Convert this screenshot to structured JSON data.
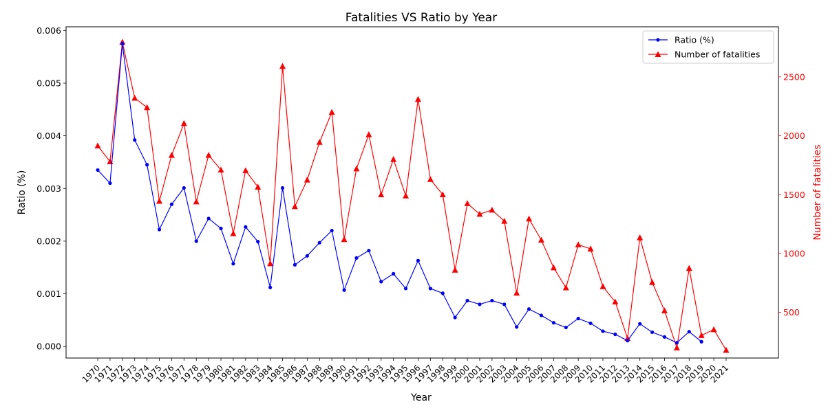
{
  "chart_data": {
    "type": "line",
    "title": "Fatalities VS Ratio by Year",
    "xlabel": "Year",
    "ylabel_left": "Ratio (%)",
    "ylabel_right": "Number of fatalities",
    "categories": [
      "1970",
      "1971",
      "1972",
      "1973",
      "1974",
      "1975",
      "1976",
      "1977",
      "1978",
      "1979",
      "1980",
      "1981",
      "1982",
      "1983",
      "1984",
      "1985",
      "1986",
      "1987",
      "1988",
      "1989",
      "1990",
      "1991",
      "1992",
      "1993",
      "1994",
      "1995",
      "1996",
      "1997",
      "1998",
      "1999",
      "2000",
      "2001",
      "2002",
      "2003",
      "2004",
      "2005",
      "2006",
      "2007",
      "2008",
      "2009",
      "2010",
      "2011",
      "2012",
      "2013",
      "2014",
      "2015",
      "2016",
      "2017",
      "2018",
      "2019",
      "2020",
      "2021"
    ],
    "ylim_left": [
      -0.00022,
      0.00607
    ],
    "ylim_right": [
      113,
      2925
    ],
    "yticks_left": [
      "0.000",
      "0.001",
      "0.002",
      "0.003",
      "0.004",
      "0.005",
      "0.006"
    ],
    "yticks_left_values": [
      0,
      0.001,
      0.002,
      0.003,
      0.004,
      0.005,
      0.006
    ],
    "yticks_right": [
      "500",
      "1000",
      "1500",
      "2000",
      "2500"
    ],
    "yticks_right_values": [
      500,
      1000,
      1500,
      2000,
      2500
    ],
    "grid": false,
    "legend_position": "top-right",
    "series": [
      {
        "name": "Ratio (%)",
        "axis": "left",
        "color": "#0000ff",
        "marker": "circle",
        "values": [
          0.00335,
          0.0031,
          0.00575,
          0.00392,
          0.00345,
          0.00222,
          0.0027,
          0.00301,
          0.002,
          0.00243,
          0.00224,
          0.00157,
          0.00227,
          0.00199,
          0.00112,
          0.00301,
          0.00155,
          0.00172,
          0.00197,
          0.0022,
          0.00107,
          0.00168,
          0.00182,
          0.00123,
          0.00138,
          0.0011,
          0.00163,
          0.0011,
          0.00101,
          0.00055,
          0.00087,
          0.0008,
          0.00087,
          0.0008,
          0.00037,
          0.00071,
          0.00059,
          0.00045,
          0.00036,
          0.00053,
          0.00044,
          0.00029,
          0.00023,
          0.00011,
          0.00043,
          0.00027,
          0.00018,
          7e-05,
          0.00028,
          9e-05,
          null,
          null
        ]
      },
      {
        "name": "Number of fatalities",
        "axis": "right",
        "color": "#ff0000",
        "marker": "triangle",
        "values": [
          1915,
          1780,
          2795,
          2320,
          2240,
          1445,
          1835,
          2105,
          1440,
          1835,
          1710,
          1170,
          1705,
          1565,
          915,
          2590,
          1400,
          1625,
          1945,
          2200,
          1120,
          1720,
          2010,
          1500,
          1800,
          1490,
          2310,
          1630,
          1500,
          860,
          1425,
          1335,
          1370,
          1275,
          665,
          1295,
          1115,
          880,
          710,
          1075,
          1040,
          720,
          590,
          280,
          1135,
          755,
          515,
          200,
          875,
          305,
          355,
          180
        ]
      }
    ]
  }
}
